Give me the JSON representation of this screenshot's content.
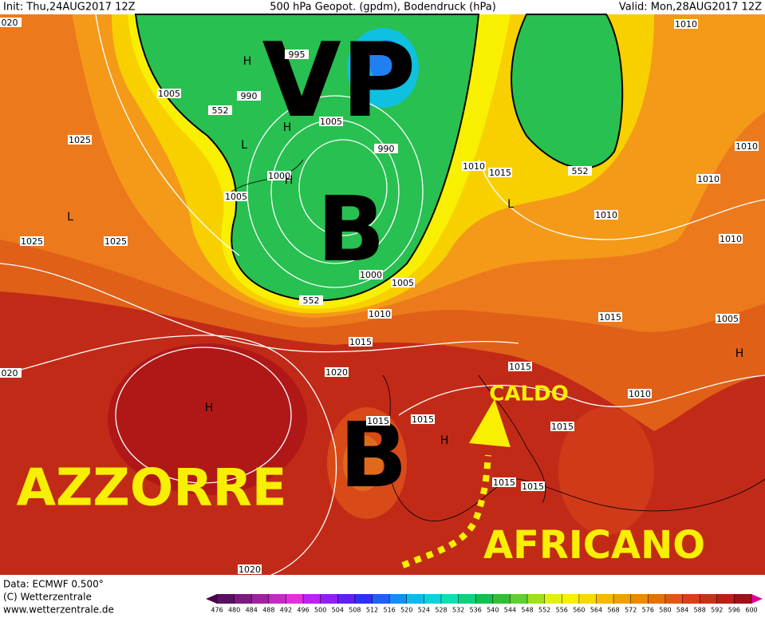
{
  "header": {
    "init": "Init: Thu,24AUG2017  12Z",
    "title": "500 hPa Geopot. (gpdm), Bodendruck (hPa)",
    "valid": "Valid: Mon,28AUG2017  12Z"
  },
  "annotations": {
    "vp": "VP",
    "low_north": "B",
    "low_iberia": "B",
    "azores": "AZZORRE",
    "warm": "CALDO",
    "african": "AFRICANO"
  },
  "isobar_labels": [
    "1010",
    "995",
    "1005",
    "990",
    "552",
    "1005",
    "1025",
    "990",
    "1010",
    "1010",
    "1015",
    "552",
    "1000",
    "1005",
    "1010",
    "1010",
    "1025",
    "1025",
    "1010",
    "1000",
    "1005",
    "552",
    "1010",
    "1015",
    "1005",
    "1015",
    "1020",
    "1015",
    "1010",
    "1015",
    "1015",
    "1015",
    "1015",
    "1015",
    "1020",
    "020",
    "020"
  ],
  "pressure_centers": [
    "H",
    "L",
    "H",
    "H",
    "L",
    "L",
    "H",
    "H",
    "H"
  ],
  "footer": {
    "data": "Data: ECMWF   0.500°",
    "copyright": "(C) Wetterzentrale",
    "url": "www.wetterzentrale.de"
  },
  "colorbar": {
    "ticks": [
      476,
      480,
      484,
      488,
      492,
      496,
      500,
      504,
      508,
      512,
      516,
      520,
      524,
      528,
      532,
      536,
      540,
      544,
      548,
      552,
      556,
      560,
      564,
      568,
      572,
      576,
      580,
      584,
      588,
      592,
      596,
      600
    ],
    "colors": [
      "#5a1060",
      "#80187f",
      "#a0209f",
      "#c828c8",
      "#e030e0",
      "#c020f0",
      "#9020f0",
      "#6020f0",
      "#3030f0",
      "#2060f0",
      "#1090f0",
      "#10b8f0",
      "#10d0e0",
      "#10e0b0",
      "#10d080",
      "#10c050",
      "#30c030",
      "#60d030",
      "#a0e020",
      "#e0f010",
      "#f8f000",
      "#f8d800",
      "#f8b800",
      "#f0a000",
      "#f08800",
      "#e87000",
      "#e05810",
      "#d84018",
      "#c83018",
      "#b82018",
      "#a01018"
    ]
  }
}
